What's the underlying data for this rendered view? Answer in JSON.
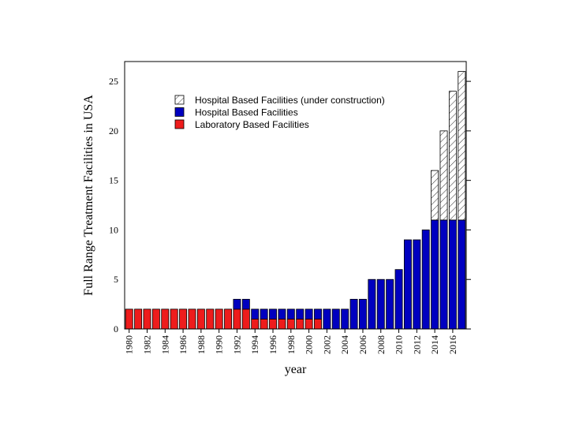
{
  "chart_data": {
    "type": "bar",
    "stacked": true,
    "xlabel": "year",
    "ylabel": "Full Range Treatment Facilities in USA",
    "ylim": [
      0,
      27
    ],
    "yticks": [
      0,
      5,
      10,
      15,
      20,
      25
    ],
    "x_tick_labels": [
      "1980",
      "1982",
      "1984",
      "1986",
      "1988",
      "1990",
      "1992",
      "1994",
      "1996",
      "1998",
      "2000",
      "2002",
      "2004",
      "2006",
      "2008",
      "2010",
      "2012",
      "2014",
      "2016"
    ],
    "categories": [
      1980,
      1981,
      1982,
      1983,
      1984,
      1985,
      1986,
      1987,
      1988,
      1989,
      1990,
      1991,
      1992,
      1993,
      1994,
      1995,
      1996,
      1997,
      1998,
      1999,
      2000,
      2001,
      2002,
      2003,
      2004,
      2005,
      2006,
      2007,
      2008,
      2009,
      2010,
      2011,
      2012,
      2013,
      2014,
      2015,
      2016,
      2017
    ],
    "series": [
      {
        "name": "Laboratory Based Facilities",
        "color": "#ee1c1c",
        "pattern": "solid",
        "values": [
          2,
          2,
          2,
          2,
          2,
          2,
          2,
          2,
          2,
          2,
          2,
          2,
          2,
          2,
          1,
          1,
          1,
          1,
          1,
          1,
          1,
          1,
          0,
          0,
          0,
          0,
          0,
          0,
          0,
          0,
          0,
          0,
          0,
          0,
          0,
          0,
          0,
          0
        ]
      },
      {
        "name": "Hospital Based Facilities",
        "color": "#0000c0",
        "pattern": "solid",
        "values": [
          0,
          0,
          0,
          0,
          0,
          0,
          0,
          0,
          0,
          0,
          0,
          0,
          1,
          1,
          1,
          1,
          1,
          1,
          1,
          1,
          1,
          1,
          2,
          2,
          2,
          3,
          3,
          5,
          5,
          5,
          6,
          9,
          9,
          10,
          11,
          11,
          11,
          11
        ]
      },
      {
        "name": "Hospital Based Facilities (under construction)",
        "color": "#ffffff",
        "pattern": "hatch",
        "values": [
          0,
          0,
          0,
          0,
          0,
          0,
          0,
          0,
          0,
          0,
          0,
          0,
          0,
          0,
          0,
          0,
          0,
          0,
          0,
          0,
          0,
          0,
          0,
          0,
          0,
          0,
          0,
          0,
          0,
          0,
          0,
          0,
          0,
          0,
          5,
          9,
          13,
          15
        ]
      }
    ],
    "legend": {
      "position": "top-left",
      "order": [
        "Hospital Based Facilities (under construction)",
        "Hospital Based Facilities",
        "Laboratory Based Facilities"
      ]
    },
    "grid": false
  }
}
